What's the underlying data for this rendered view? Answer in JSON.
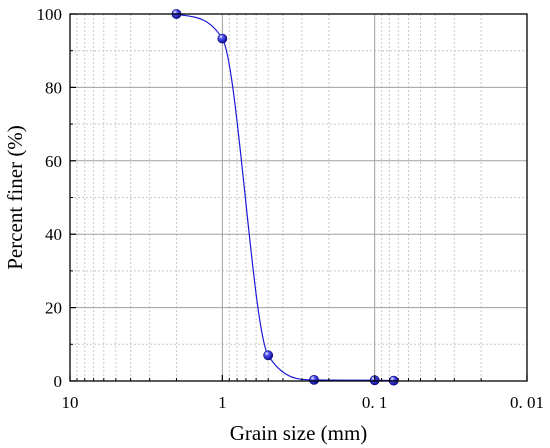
{
  "chart_data": {
    "type": "scatter",
    "title": "",
    "xlabel": "Grain size (mm)",
    "ylabel": "Percent finer (%)",
    "x_scale": "log",
    "x_reversed": true,
    "xlim": [
      10,
      0.01
    ],
    "ylim": [
      0,
      100
    ],
    "grid": true,
    "x_ticks": [
      {
        "value": 10,
        "label": "10"
      },
      {
        "value": 1,
        "label": "1"
      },
      {
        "value": 0.1,
        "label": "0. 1"
      },
      {
        "value": 0.01,
        "label": "0. 01"
      }
    ],
    "y_ticks": [
      0,
      20,
      40,
      60,
      80,
      100
    ],
    "series": [
      {
        "marker": "sphere",
        "line": "smooth",
        "points": [
          {
            "x": 2,
            "y": 100
          },
          {
            "x": 1,
            "y": 93.3
          },
          {
            "x": 0.5,
            "y": 7
          },
          {
            "x": 0.25,
            "y": 0.3
          },
          {
            "x": 0.1,
            "y": 0.2
          },
          {
            "x": 0.075,
            "y": 0.1
          }
        ]
      }
    ],
    "colors": {
      "line": "#1a1ad6",
      "marker": "#1414cc",
      "grid_major": "#a0a0a0",
      "grid_minor": "#c8c8c8"
    }
  }
}
